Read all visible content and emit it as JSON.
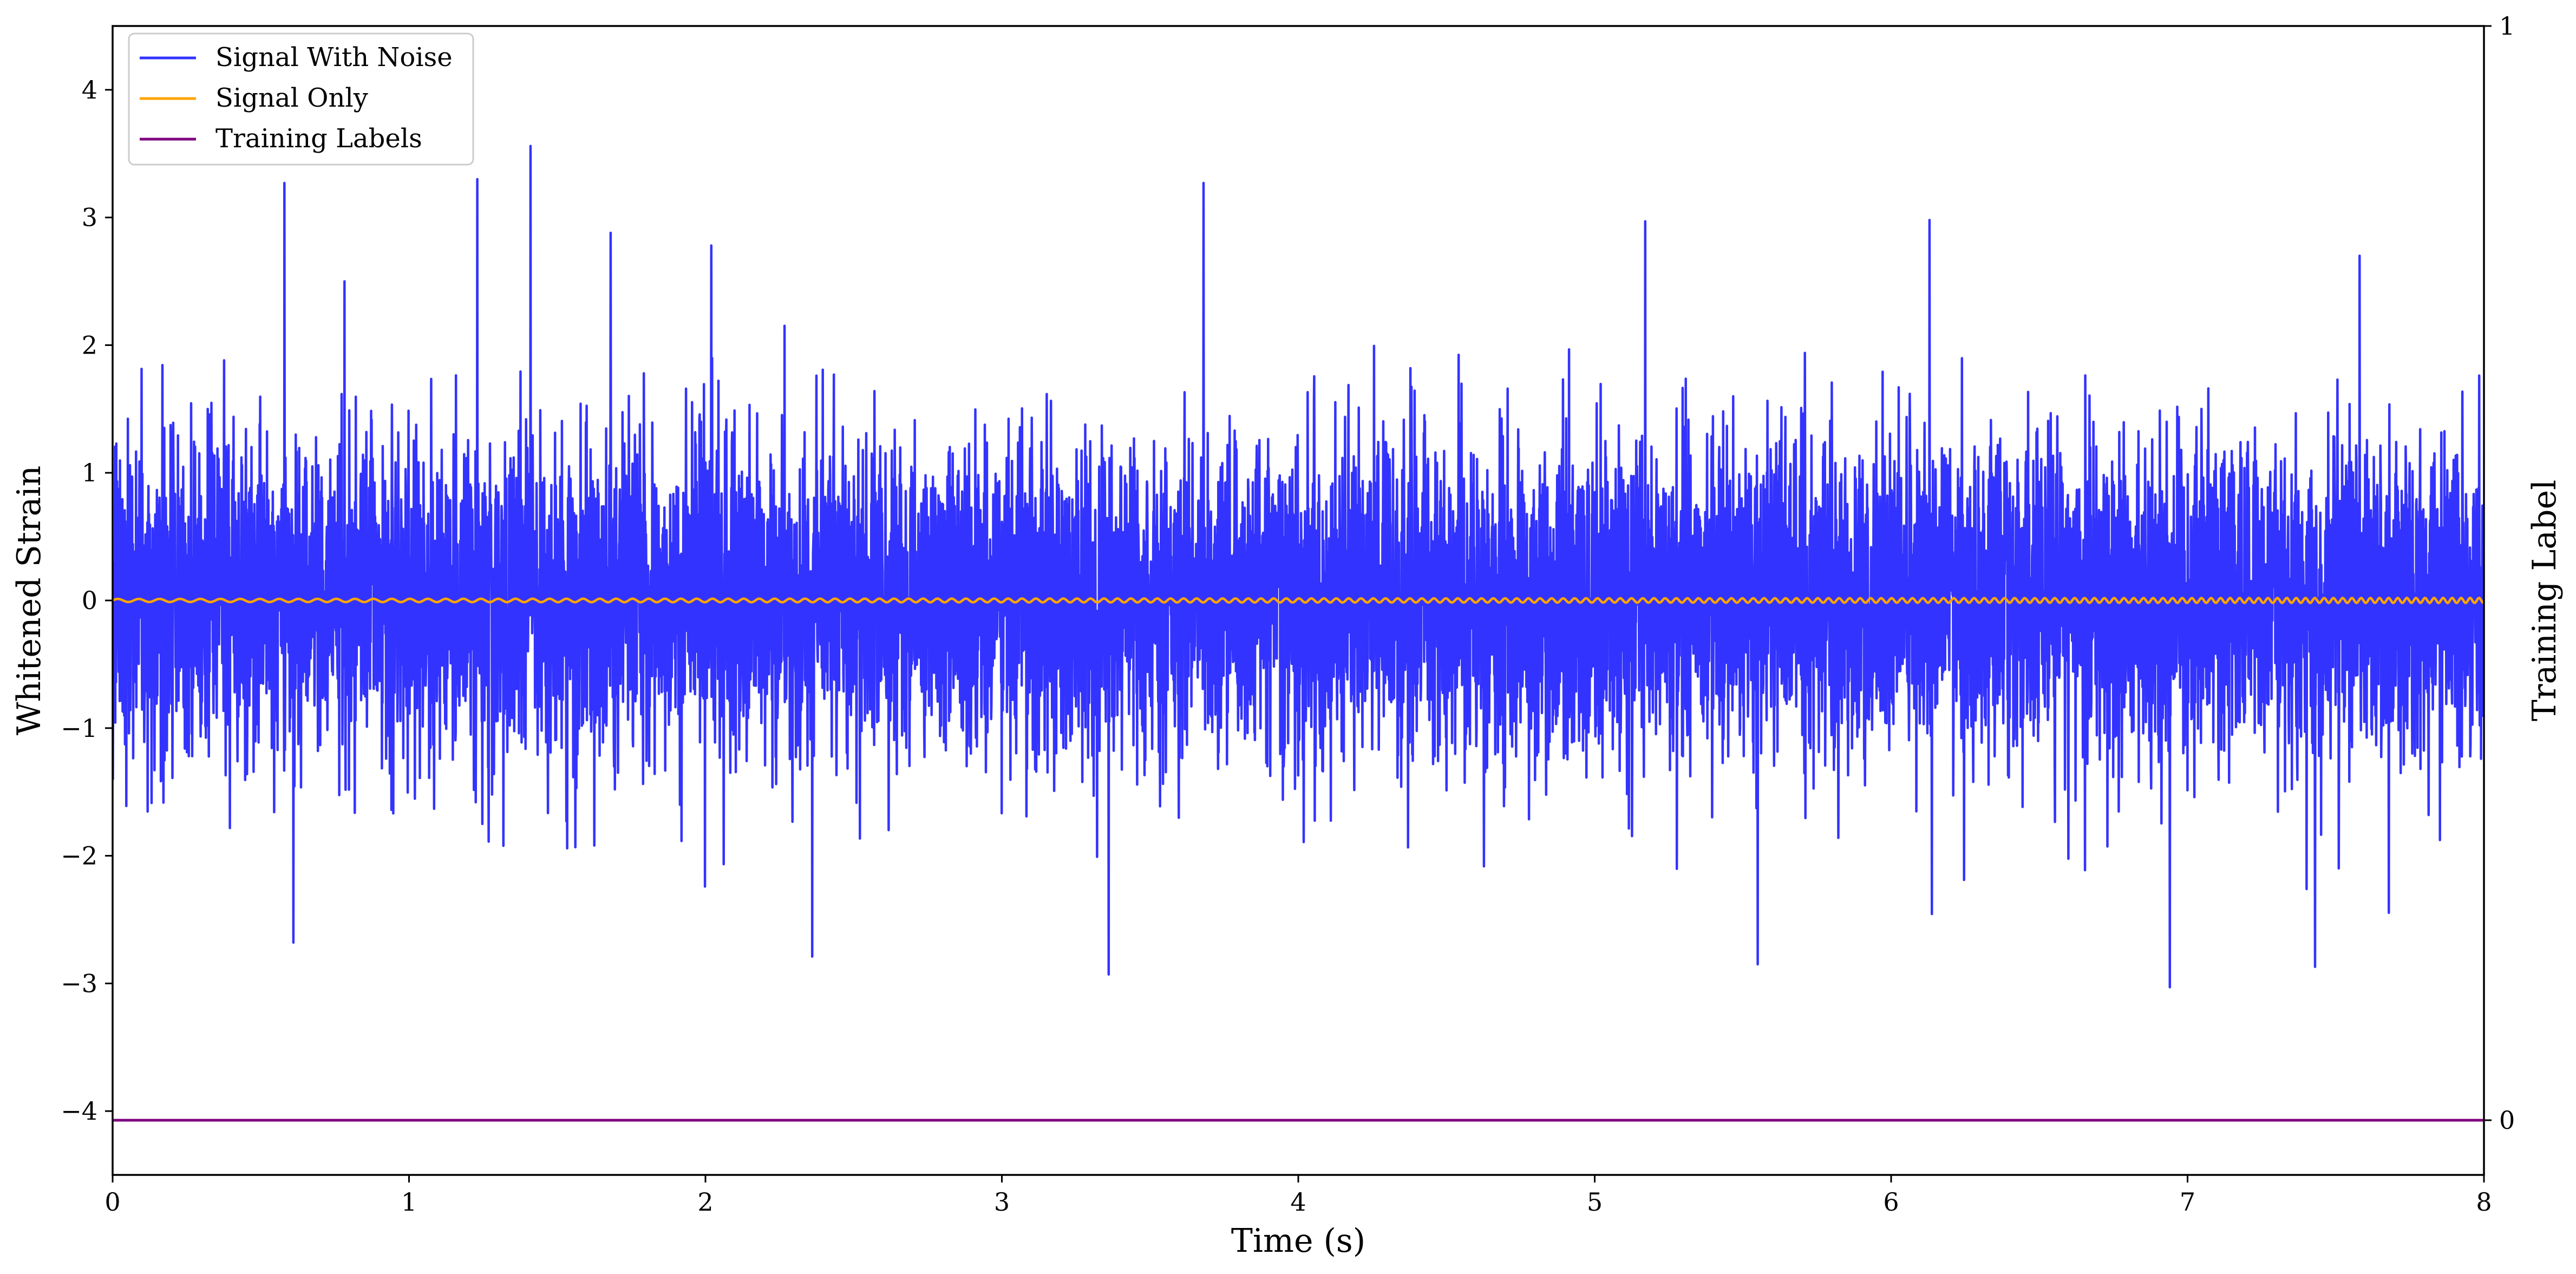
{
  "chart_data": {
    "type": "line",
    "xlabel": "Time (s)",
    "ylabel": "Whitened Strain",
    "y2label": "Training Label",
    "xlim": [
      0,
      8
    ],
    "ylim": [
      -4.5,
      4.5
    ],
    "y2lim": [
      -0.05,
      1
    ],
    "xticks": [
      0,
      1,
      2,
      3,
      4,
      5,
      6,
      7,
      8
    ],
    "xtick_labels": [
      "0",
      "1",
      "2",
      "3",
      "4",
      "5",
      "6",
      "7",
      "8"
    ],
    "yticks": [
      4,
      3,
      2,
      1,
      0,
      -1,
      -2,
      -3,
      -4
    ],
    "ytick_labels": [
      "4",
      "3",
      "2",
      "1",
      "0",
      "−1",
      "−2",
      "−3",
      "−4"
    ],
    "y2ticks": [
      1,
      0
    ],
    "y2tick_labels": [
      "1",
      "0"
    ],
    "grid": false,
    "legend_position": "upper-left",
    "series": [
      {
        "name": "Signal With Noise",
        "color": "#3333ff",
        "axis": "left",
        "description_values": "dense noise, mean 0, std approx 0.6",
        "approx_min": -3.0,
        "approx_max": 3.56,
        "notable_peaks": [
          {
            "x": 0.58,
            "y": 3.27
          },
          {
            "x": 1.23,
            "y": 3.3
          },
          {
            "x": 1.41,
            "y": 3.56
          },
          {
            "x": 1.68,
            "y": 2.88
          },
          {
            "x": 2.02,
            "y": 2.78
          },
          {
            "x": 3.68,
            "y": 3.27
          },
          {
            "x": 5.17,
            "y": 2.97
          },
          {
            "x": 6.13,
            "y": 2.98
          },
          {
            "x": 7.58,
            "y": 2.7
          },
          {
            "x": 0.61,
            "y": -2.68
          },
          {
            "x": 2.36,
            "y": -2.79
          },
          {
            "x": 3.36,
            "y": -2.93
          },
          {
            "x": 5.55,
            "y": -2.85
          },
          {
            "x": 6.94,
            "y": -3.03
          },
          {
            "x": 7.43,
            "y": -2.87
          }
        ]
      },
      {
        "name": "Signal Only",
        "color": "#ffa500",
        "axis": "left",
        "approx_amplitude": 0.02,
        "approx_value": 0
      },
      {
        "name": "Training Labels",
        "color": "#800080",
        "axis": "right",
        "x": [
          0,
          8
        ],
        "values": [
          0,
          0
        ]
      }
    ]
  }
}
